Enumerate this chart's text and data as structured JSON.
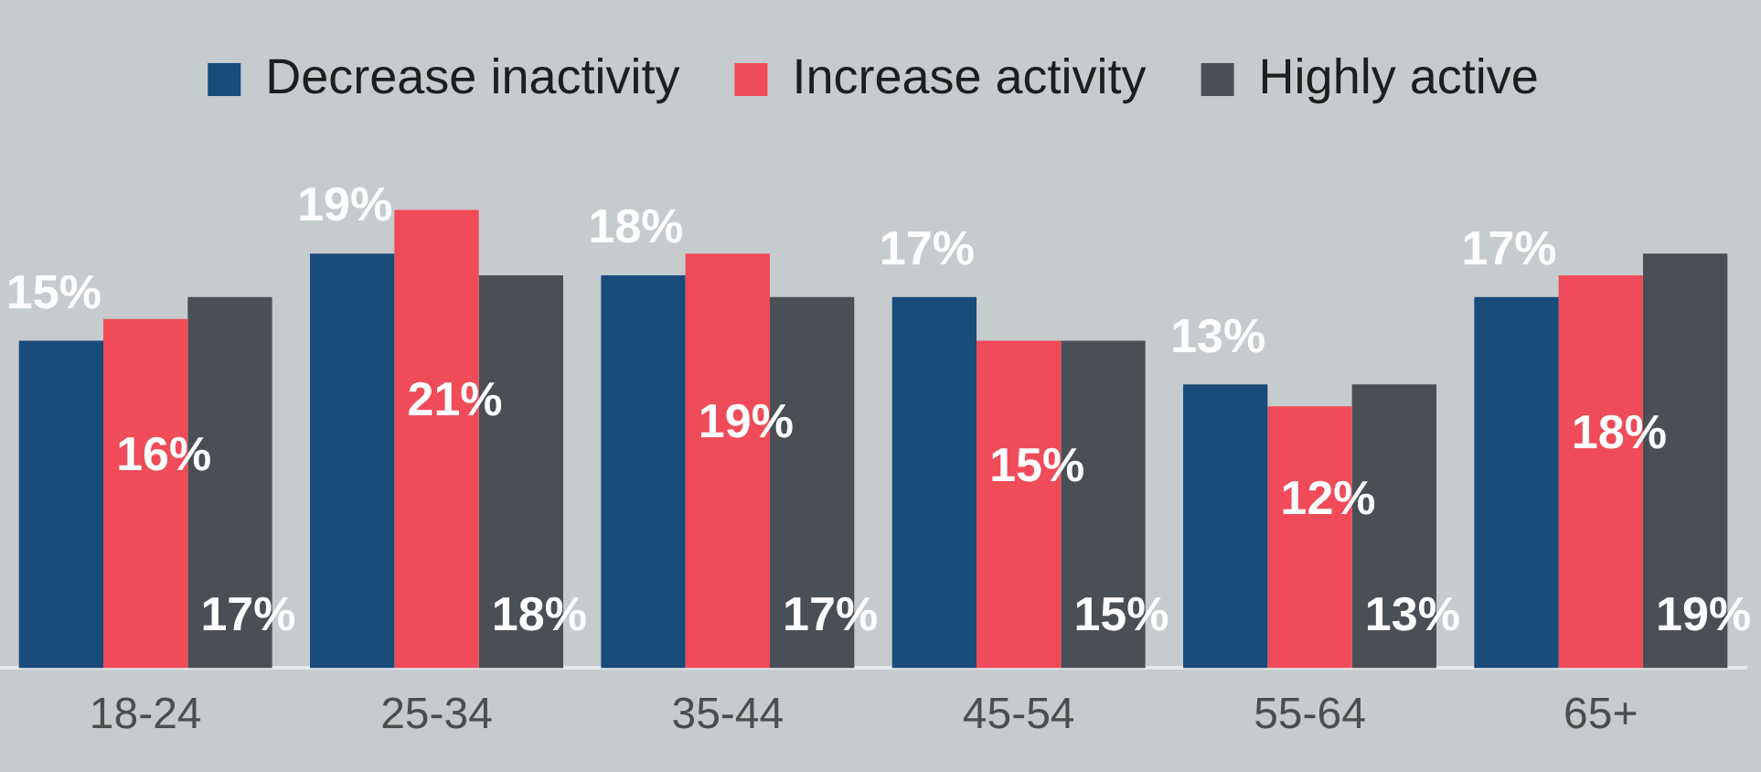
{
  "chart_data": {
    "type": "bar",
    "categories": [
      "18-24",
      "25-34",
      "35-44",
      "45-54",
      "55-64",
      "65+"
    ],
    "series": [
      {
        "name": "Decrease inactivity",
        "color": "#194b7b",
        "values": [
          15,
          19,
          18,
          17,
          13,
          17
        ],
        "value_labels": [
          "15%",
          "19%",
          "18%",
          "17%",
          "13%",
          "17%"
        ]
      },
      {
        "name": "Increase activity",
        "color": "#f04b58",
        "values": [
          16,
          21,
          19,
          15,
          12,
          18
        ],
        "value_labels": [
          "16%",
          "21%",
          "19%",
          "15%",
          "12%",
          "18%"
        ]
      },
      {
        "name": "Highly active",
        "color": "#4a4e55",
        "values": [
          17,
          18,
          17,
          15,
          13,
          19
        ],
        "value_labels": [
          "17%",
          "18%",
          "17%",
          "15%",
          "13%",
          "19%"
        ]
      }
    ],
    "legend": "top",
    "grid": false
  }
}
